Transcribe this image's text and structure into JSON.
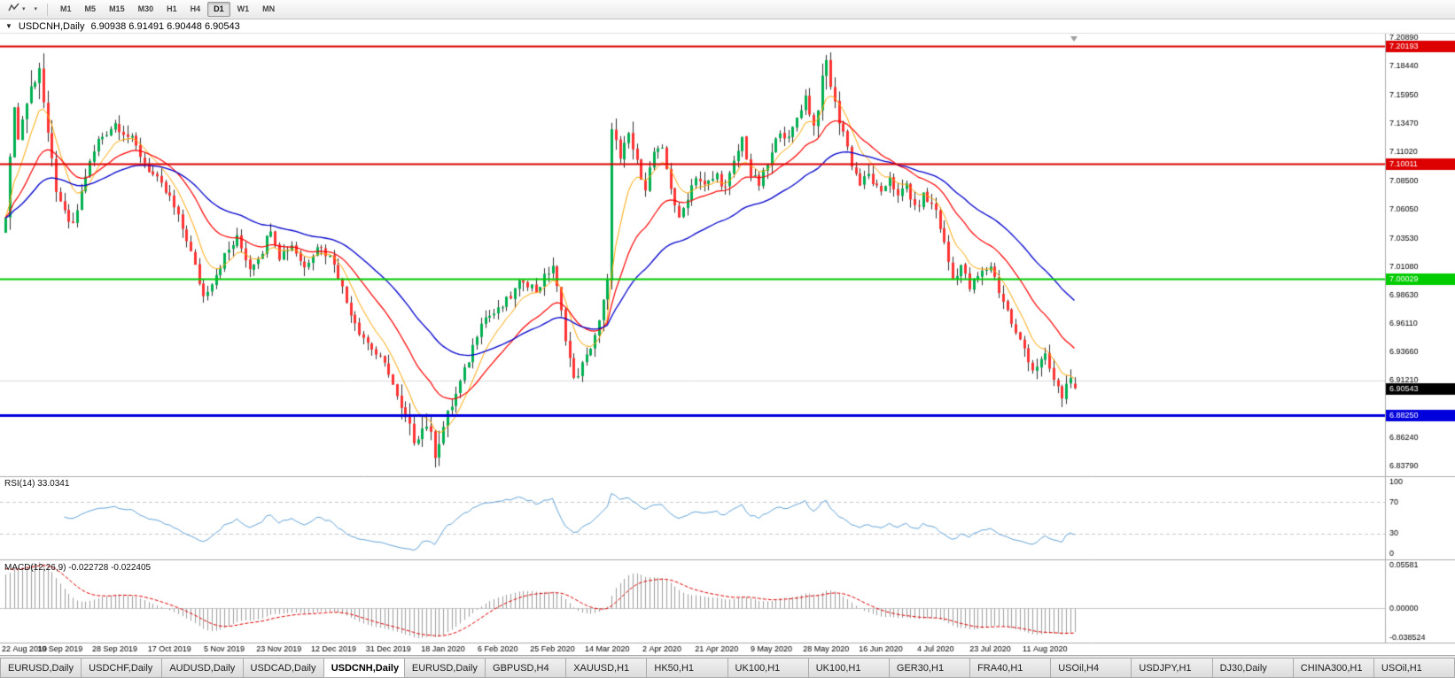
{
  "toolbar": {
    "chart_type_tool": {
      "icon": "line-chart-icon"
    },
    "templates_tool": {
      "icon": "dropdown-caret-icon"
    },
    "timeframes": [
      {
        "label": "M1"
      },
      {
        "label": "M5"
      },
      {
        "label": "M15"
      },
      {
        "label": "M30"
      },
      {
        "label": "H1"
      },
      {
        "label": "H4"
      },
      {
        "label": "D1",
        "active": true
      },
      {
        "label": "W1"
      },
      {
        "label": "MN"
      }
    ]
  },
  "chart": {
    "caption_symbol": "USDCNH,Daily",
    "caption_ohlc": "6.90938 6.91491 6.90448 6.90543",
    "price_axis_labels": [
      "7.20890",
      "7.18440",
      "7.15950",
      "7.13470",
      "7.11020",
      "7.08500",
      "7.06050",
      "7.03530",
      "7.01080",
      "6.98630",
      "6.96110",
      "6.93660",
      "6.91210",
      "6.86240",
      "6.83790"
    ],
    "hlines": [
      {
        "price": 7.20193,
        "label": "7.20193",
        "color": "#DD0000",
        "width": 2
      },
      {
        "price": 7.10011,
        "label": "7.10011",
        "color": "#DD0000",
        "width": 2
      },
      {
        "price": 7.00029,
        "label": "7.00029",
        "color": "#00CC00",
        "width": 2
      },
      {
        "price": 6.8825,
        "label": "6.88250",
        "color": "#0000DD",
        "width": 3
      },
      {
        "price": 6.9121,
        "label": null,
        "color": "#DCDCDC",
        "width": 1
      }
    ],
    "current_price": {
      "label": "6.90543",
      "value": 6.90543,
      "bg": "#000000",
      "fg": "#FFFFFF"
    },
    "ylim": [
      6.83,
      7.2125
    ],
    "colors": {
      "bg": "#FFFFFF",
      "up": "#00B050",
      "down": "#FF3232",
      "wick": "#2F2F2F",
      "ma_fast": "#FFA500",
      "ma_mid": "#FF0000",
      "ma_slow": "#0000CC",
      "axis_text": "#000000",
      "separator": "#ADADAD",
      "shift_marker": "#A0A0A0"
    }
  },
  "rsi": {
    "label": "RSI(14)",
    "value": "33.0341",
    "axis_labels": [
      "100",
      "70",
      "30",
      "0"
    ],
    "axis_values": [
      100,
      70,
      30,
      0
    ],
    "levels": [
      70,
      30
    ],
    "color": "#63A3D8"
  },
  "macd": {
    "label": "MACD(12,26,9)",
    "value": "-0.022728 -0.022405",
    "axis_labels": [
      "0.05581",
      "0.00000",
      "-0.038524"
    ],
    "axis_values": [
      0.05581,
      0,
      -0.038524
    ],
    "histogram_color": "#9E9E9E",
    "signal_color": "#E00000"
  },
  "time_axis": {
    "labels": [
      "22 Aug 2019",
      "10 Sep 2019",
      "28 Sep 2019",
      "17 Oct 2019",
      "5 Nov 2019",
      "23 Nov 2019",
      "12 Dec 2019",
      "31 Dec 2019",
      "18 Jan 2020",
      "6 Feb 2020",
      "25 Feb 2020",
      "14 Mar 2020",
      "2 Apr 2020",
      "21 Apr 2020",
      "9 May 2020",
      "28 May 2020",
      "16 Jun 2020",
      "4 Jul 2020",
      "23 Jul 2020",
      "11 Aug 2020"
    ],
    "bars_per_label": 13
  },
  "tabs": [
    {
      "label": "EURUSD,Daily"
    },
    {
      "label": "USDCHF,Daily"
    },
    {
      "label": "AUDUSD,Daily"
    },
    {
      "label": "USDCAD,Daily"
    },
    {
      "label": "USDCNH,Daily",
      "active": true
    },
    {
      "label": "EURUSD,Daily"
    },
    {
      "label": "GBPUSD,H4"
    },
    {
      "label": "XAUUSD,H1"
    },
    {
      "label": "HK50,H1"
    },
    {
      "label": "UK100,H1"
    },
    {
      "label": "UK100,H1"
    },
    {
      "label": "GER30,H1"
    },
    {
      "label": "FRA40,H1"
    },
    {
      "label": "USOil,H4"
    },
    {
      "label": "USDJPY,H1"
    },
    {
      "label": "DJ30,Daily"
    },
    {
      "label": "CHINA300,H1"
    },
    {
      "label": "USOil,H1"
    }
  ],
  "chart_data": {
    "type": "candlestick",
    "symbol": "USDCNH",
    "period": "Daily",
    "bars": 255,
    "last_bar_ohlc": {
      "open": 6.90938,
      "high": 6.91491,
      "low": 6.90448,
      "close": 6.90543
    },
    "price_waypoints": [
      [
        0,
        7.06
      ],
      [
        1,
        7.1
      ],
      [
        2,
        7.155
      ],
      [
        3,
        7.12
      ],
      [
        4,
        7.14
      ],
      [
        6,
        7.165
      ],
      [
        8,
        7.185
      ],
      [
        10,
        7.12
      ],
      [
        13,
        7.06
      ],
      [
        16,
        7.045
      ],
      [
        19,
        7.09
      ],
      [
        22,
        7.12
      ],
      [
        26,
        7.135
      ],
      [
        30,
        7.12
      ],
      [
        34,
        7.095
      ],
      [
        39,
        7.07
      ],
      [
        43,
        7.035
      ],
      [
        47,
        6.985
      ],
      [
        50,
        7.005
      ],
      [
        52,
        7.02
      ],
      [
        55,
        7.035
      ],
      [
        58,
        7.01
      ],
      [
        61,
        7.025
      ],
      [
        63,
        7.045
      ],
      [
        65,
        7.02
      ],
      [
        68,
        7.03
      ],
      [
        71,
        7.01
      ],
      [
        74,
        7.03
      ],
      [
        78,
        7.015
      ],
      [
        81,
        6.98
      ],
      [
        84,
        6.955
      ],
      [
        88,
        6.935
      ],
      [
        91,
        6.92
      ],
      [
        94,
        6.885
      ],
      [
        97,
        6.862
      ],
      [
        100,
        6.875
      ],
      [
        102,
        6.85
      ],
      [
        104,
        6.872
      ],
      [
        107,
        6.9
      ],
      [
        110,
        6.93
      ],
      [
        113,
        6.965
      ],
      [
        117,
        6.972
      ],
      [
        120,
        6.985
      ],
      [
        123,
        7.0
      ],
      [
        126,
        6.99
      ],
      [
        130,
        7.012
      ],
      [
        133,
        6.95
      ],
      [
        135,
        6.912
      ],
      [
        138,
        6.932
      ],
      [
        141,
        6.962
      ],
      [
        143,
        6.995
      ],
      [
        144,
        7.135
      ],
      [
        146,
        7.1
      ],
      [
        148,
        7.125
      ],
      [
        150,
        7.1
      ],
      [
        152,
        7.08
      ],
      [
        154,
        7.11
      ],
      [
        156,
        7.11
      ],
      [
        158,
        7.08
      ],
      [
        160,
        7.05
      ],
      [
        162,
        7.072
      ],
      [
        164,
        7.09
      ],
      [
        166,
        7.08
      ],
      [
        169,
        7.09
      ],
      [
        171,
        7.078
      ],
      [
        173,
        7.1
      ],
      [
        175,
        7.122
      ],
      [
        177,
        7.09
      ],
      [
        179,
        7.082
      ],
      [
        182,
        7.108
      ],
      [
        184,
        7.13
      ],
      [
        186,
        7.12
      ],
      [
        188,
        7.14
      ],
      [
        190,
        7.158
      ],
      [
        192,
        7.132
      ],
      [
        194,
        7.17
      ],
      [
        195,
        7.188
      ],
      [
        197,
        7.15
      ],
      [
        199,
        7.128
      ],
      [
        201,
        7.1
      ],
      [
        203,
        7.082
      ],
      [
        205,
        7.09
      ],
      [
        208,
        7.072
      ],
      [
        210,
        7.09
      ],
      [
        212,
        7.07
      ],
      [
        214,
        7.082
      ],
      [
        216,
        7.06
      ],
      [
        218,
        7.072
      ],
      [
        221,
        7.06
      ],
      [
        223,
        7.03
      ],
      [
        225,
        7.0
      ],
      [
        227,
        7.012
      ],
      [
        229,
        6.992
      ],
      [
        231,
        7.002
      ],
      [
        234,
        7.012
      ],
      [
        236,
        6.99
      ],
      [
        238,
        6.972
      ],
      [
        240,
        6.952
      ],
      [
        242,
        6.94
      ],
      [
        244,
        6.922
      ],
      [
        247,
        6.932
      ],
      [
        249,
        6.912
      ],
      [
        251,
        6.898
      ],
      [
        253,
        6.918
      ],
      [
        254,
        6.9054
      ]
    ],
    "volatility_zones": [
      [
        0,
        14,
        1.8
      ],
      [
        94,
        105,
        1.5
      ],
      [
        142,
        149,
        1.6
      ],
      [
        192,
        199,
        1.6
      ]
    ],
    "indicators": [
      {
        "name": "MA",
        "period": 8,
        "method": "ema",
        "color": "#FFA500"
      },
      {
        "name": "MA",
        "period": 21,
        "method": "ema",
        "color": "#FF0000"
      },
      {
        "name": "MA",
        "period": 45,
        "method": "ema",
        "color": "#0000CC"
      },
      {
        "name": "RSI",
        "period": 14,
        "current": 33.0341
      },
      {
        "name": "MACD",
        "fast": 12,
        "slow": 26,
        "signal": 9,
        "current_macd": -0.022728,
        "current_signal": -0.022405
      }
    ]
  }
}
